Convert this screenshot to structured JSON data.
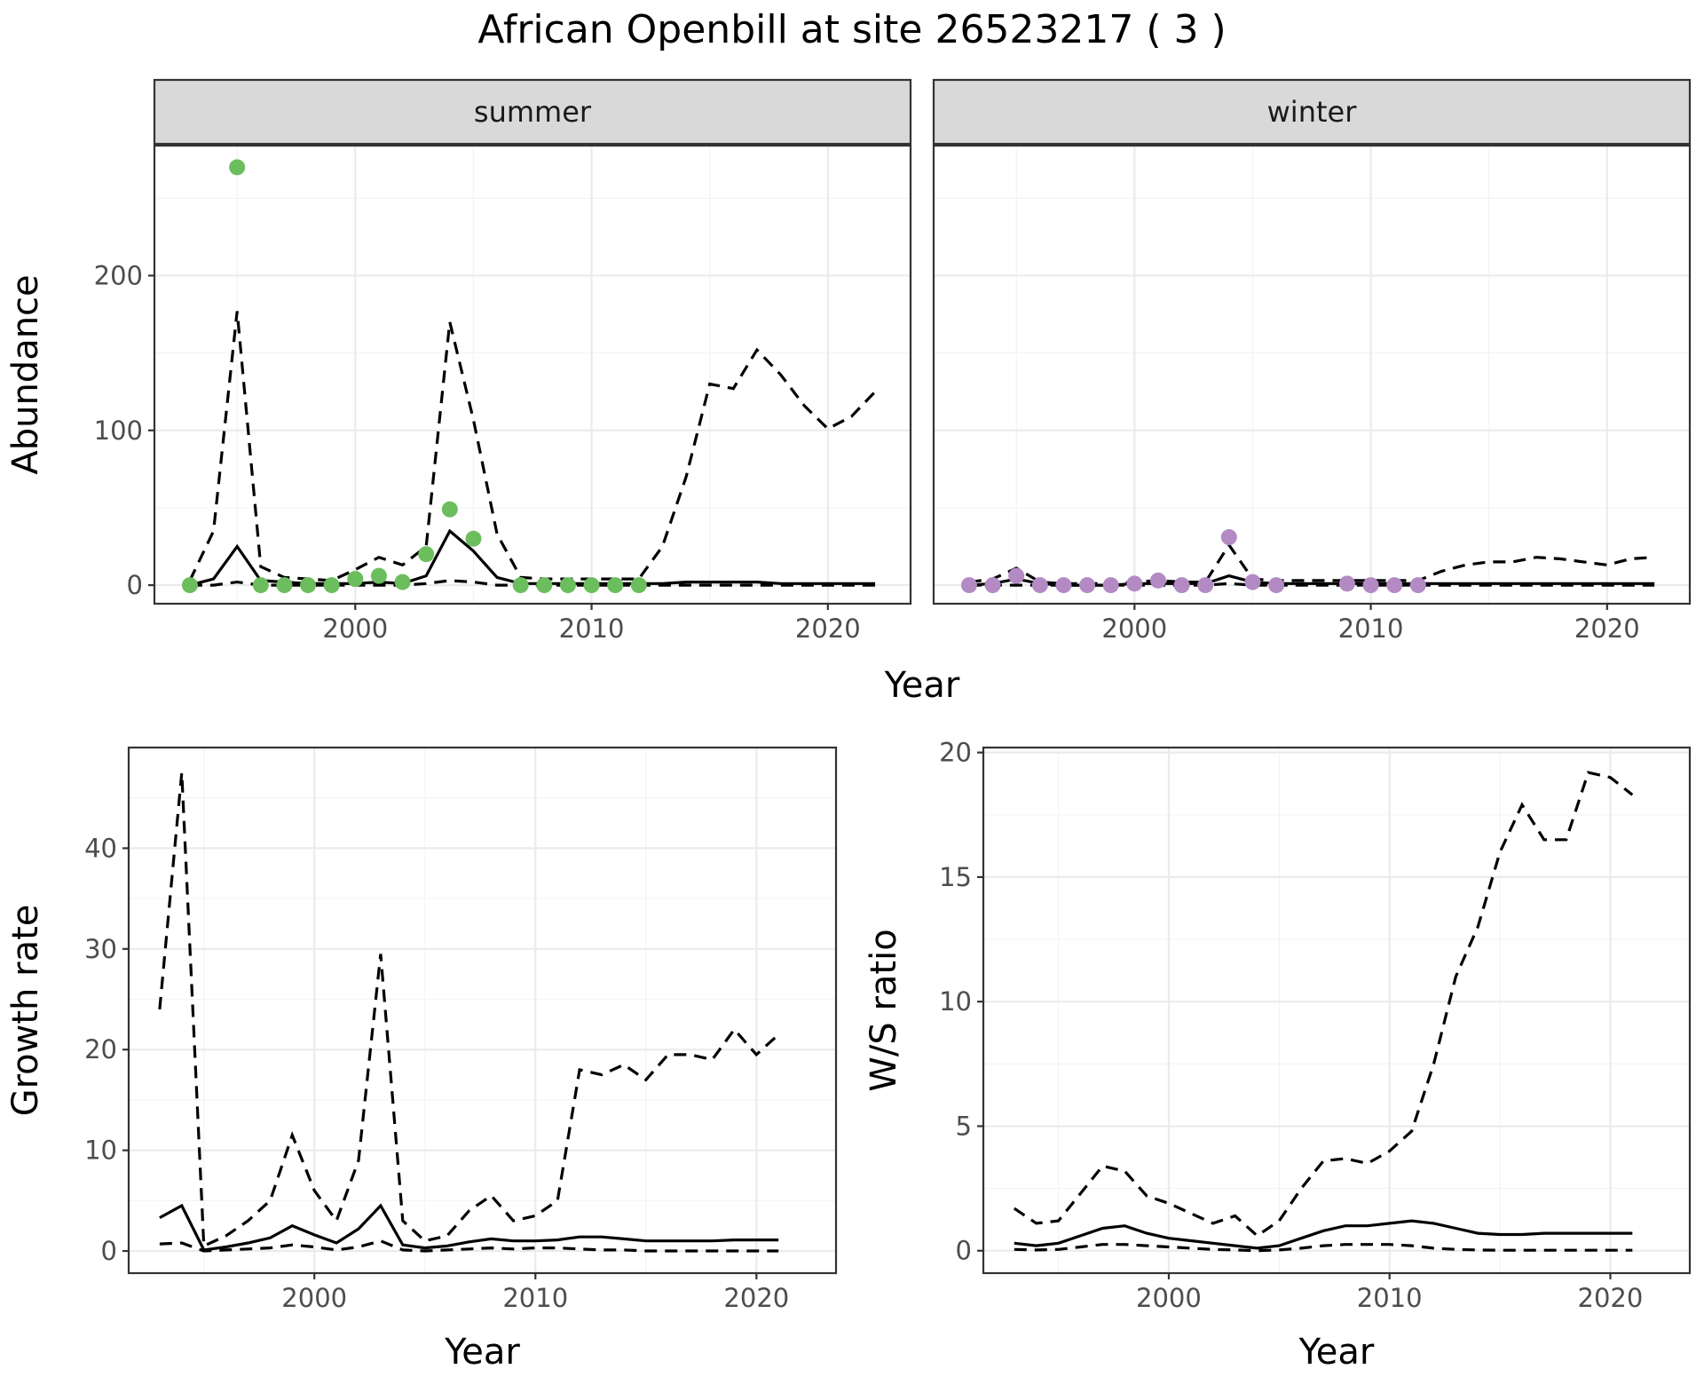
{
  "figure": {
    "title": "African Openbill at site 26523217 ( 3 )",
    "top_xlabel": "Year"
  },
  "colors": {
    "summer_points": "#6cbd5d",
    "winter_points": "#b38ac4",
    "lines": "#000000",
    "strip": "#d9d9d9"
  },
  "chart_data": [
    {
      "type": "line",
      "panel": "summer",
      "strip_label": "summer",
      "xlabel": "",
      "ylabel": "Abundance",
      "xlim": [
        1991.5,
        2023.5
      ],
      "ylim": [
        -12,
        284
      ],
      "xticks": [
        2000,
        2010,
        2020
      ],
      "yticks": [
        0,
        100,
        200
      ],
      "x": [
        1993,
        1994,
        1995,
        1996,
        1997,
        1998,
        1999,
        2000,
        2001,
        2002,
        2003,
        2004,
        2005,
        2006,
        2007,
        2008,
        2009,
        2010,
        2011,
        2012,
        2013,
        2014,
        2015,
        2016,
        2017,
        2018,
        2019,
        2020,
        2021,
        2022
      ],
      "series": [
        {
          "role": "upper",
          "style": "dashed",
          "values": [
            3,
            35,
            177,
            12,
            5,
            4,
            3,
            10,
            18,
            13,
            25,
            170,
            107,
            33,
            5,
            4,
            4,
            4,
            4,
            4,
            25,
            70,
            130,
            127,
            152,
            136,
            116,
            101,
            109,
            125
          ]
        },
        {
          "role": "estimate",
          "style": "solid",
          "values": [
            0,
            4,
            25,
            3,
            2,
            1,
            1,
            1,
            2,
            1,
            6,
            35,
            22,
            5,
            1,
            1,
            1,
            1,
            1,
            1,
            1,
            2,
            2,
            2,
            2,
            1,
            1,
            1,
            1,
            1
          ]
        },
        {
          "role": "lower",
          "style": "dashed",
          "values": [
            0,
            0,
            2,
            0,
            0,
            0,
            0,
            0,
            0,
            0,
            1,
            3,
            2,
            0,
            0,
            0,
            0,
            0,
            0,
            0,
            0,
            0,
            0,
            0,
            0,
            0,
            0,
            0,
            0,
            0
          ]
        }
      ],
      "points": {
        "x": [
          1993,
          1995,
          1996,
          1997,
          1998,
          1999,
          2000,
          2001,
          2002,
          2003,
          2004,
          2005,
          2007,
          2008,
          2009,
          2010,
          2011,
          2012
        ],
        "y": [
          0,
          270,
          0,
          0,
          0,
          0,
          4,
          6,
          2,
          20,
          49,
          30,
          0,
          0,
          0,
          0,
          0,
          0
        ]
      }
    },
    {
      "type": "line",
      "panel": "winter",
      "strip_label": "winter",
      "xlabel": "",
      "ylabel": "",
      "xlim": [
        1991.5,
        2023.5
      ],
      "ylim": [
        -12,
        284
      ],
      "xticks": [
        2000,
        2010,
        2020
      ],
      "yticks": [],
      "x": [
        1993,
        1994,
        1995,
        1996,
        1997,
        1998,
        1999,
        2000,
        2001,
        2002,
        2003,
        2004,
        2005,
        2006,
        2007,
        2008,
        2009,
        2010,
        2011,
        2012,
        2013,
        2014,
        2015,
        2016,
        2017,
        2018,
        2019,
        2020,
        2021,
        2022
      ],
      "series": [
        {
          "role": "upper",
          "style": "dashed",
          "values": [
            2,
            4,
            11,
            2,
            1,
            1,
            1,
            2,
            3,
            2,
            2,
            26,
            4,
            3,
            3,
            3,
            3,
            3,
            3,
            3,
            9,
            13,
            15,
            15,
            18,
            17,
            15,
            13,
            17,
            18
          ]
        },
        {
          "role": "estimate",
          "style": "solid",
          "values": [
            0,
            1,
            4,
            1,
            0,
            0,
            0,
            1,
            1,
            1,
            1,
            6,
            2,
            1,
            1,
            1,
            1,
            1,
            1,
            1,
            1,
            1,
            1,
            1,
            1,
            1,
            1,
            1,
            1,
            1
          ]
        },
        {
          "role": "lower",
          "style": "dashed",
          "values": [
            0,
            0,
            0,
            0,
            0,
            0,
            0,
            0,
            0,
            0,
            0,
            1,
            0,
            0,
            0,
            0,
            0,
            0,
            0,
            0,
            0,
            0,
            0,
            0,
            0,
            0,
            0,
            0,
            0,
            0
          ]
        }
      ],
      "points": {
        "x": [
          1993,
          1994,
          1995,
          1996,
          1997,
          1998,
          1999,
          2000,
          2001,
          2002,
          2003,
          2004,
          2005,
          2006,
          2009,
          2010,
          2011,
          2012
        ],
        "y": [
          0,
          0,
          6,
          0,
          0,
          0,
          0,
          1,
          3,
          0,
          0,
          31,
          2,
          0,
          1,
          0,
          0,
          0
        ]
      }
    },
    {
      "type": "line",
      "panel": "growth",
      "xlabel": "Year",
      "ylabel": "Growth rate",
      "xlim": [
        1991.6,
        2023.6
      ],
      "ylim": [
        -2.2,
        50.0
      ],
      "xticks": [
        2000,
        2010,
        2020
      ],
      "yticks": [
        0,
        10,
        20,
        30,
        40
      ],
      "x": [
        1993,
        1994,
        1995,
        1996,
        1997,
        1998,
        1999,
        2000,
        2001,
        2002,
        2003,
        2004,
        2005,
        2006,
        2007,
        2008,
        2009,
        2010,
        2011,
        2012,
        2013,
        2014,
        2015,
        2016,
        2017,
        2018,
        2019,
        2020,
        2021
      ],
      "series": [
        {
          "role": "upper",
          "style": "dashed",
          "values": [
            24,
            47.5,
            0.5,
            1.5,
            3,
            5,
            11.5,
            6,
            3,
            9,
            29.5,
            3,
            1,
            1.5,
            4,
            5.5,
            3,
            3.5,
            5,
            18,
            17.5,
            18.5,
            17,
            19.5,
            19.5,
            19,
            22,
            19.5,
            21.5
          ]
        },
        {
          "role": "estimate",
          "style": "solid",
          "values": [
            3.3,
            4.5,
            0.1,
            0.4,
            0.8,
            1.3,
            2.5,
            1.6,
            0.8,
            2.2,
            4.5,
            0.6,
            0.3,
            0.5,
            0.9,
            1.2,
            1.0,
            1.0,
            1.1,
            1.4,
            1.4,
            1.2,
            1.0,
            1.0,
            1.0,
            1.0,
            1.1,
            1.1,
            1.1
          ]
        },
        {
          "role": "lower",
          "style": "dashed",
          "values": [
            0.7,
            0.8,
            0.0,
            0.1,
            0.2,
            0.3,
            0.6,
            0.4,
            0.1,
            0.4,
            1.0,
            0.1,
            0.0,
            0.1,
            0.2,
            0.3,
            0.2,
            0.3,
            0.3,
            0.2,
            0.1,
            0.1,
            0.0,
            0.0,
            0.0,
            0.0,
            0.0,
            0.0,
            0.0
          ]
        }
      ]
    },
    {
      "type": "line",
      "panel": "ratio",
      "xlabel": "Year",
      "ylabel": "W/S ratio",
      "xlim": [
        1991.6,
        2023.6
      ],
      "ylim": [
        -0.9,
        20.2
      ],
      "xticks": [
        2000,
        2010,
        2020
      ],
      "yticks": [
        0,
        5,
        10,
        15,
        20
      ],
      "x": [
        1993,
        1994,
        1995,
        1996,
        1997,
        1998,
        1999,
        2000,
        2001,
        2002,
        2003,
        2004,
        2005,
        2006,
        2007,
        2008,
        2009,
        2010,
        2011,
        2012,
        2013,
        2014,
        2015,
        2016,
        2017,
        2018,
        2019,
        2020,
        2021
      ],
      "series": [
        {
          "role": "upper",
          "style": "dashed",
          "values": [
            1.7,
            1.1,
            1.2,
            2.3,
            3.4,
            3.2,
            2.2,
            1.9,
            1.5,
            1.1,
            1.4,
            0.6,
            1.2,
            2.5,
            3.6,
            3.7,
            3.5,
            4.0,
            4.8,
            7.5,
            11.0,
            13.0,
            16.0,
            17.9,
            16.5,
            16.5,
            19.2,
            19.0,
            18.3
          ]
        },
        {
          "role": "estimate",
          "style": "solid",
          "values": [
            0.3,
            0.2,
            0.3,
            0.6,
            0.9,
            1.0,
            0.7,
            0.5,
            0.4,
            0.3,
            0.2,
            0.1,
            0.2,
            0.5,
            0.8,
            1.0,
            1.0,
            1.1,
            1.2,
            1.1,
            0.9,
            0.7,
            0.65,
            0.65,
            0.7,
            0.7,
            0.7,
            0.7,
            0.7
          ]
        },
        {
          "role": "lower",
          "style": "dashed",
          "values": [
            0.05,
            0.03,
            0.05,
            0.15,
            0.25,
            0.25,
            0.2,
            0.15,
            0.1,
            0.05,
            0.03,
            0.0,
            0.03,
            0.1,
            0.2,
            0.25,
            0.25,
            0.25,
            0.2,
            0.1,
            0.05,
            0.03,
            0.02,
            0.02,
            0.02,
            0.02,
            0.02,
            0.02,
            0.02
          ]
        }
      ]
    }
  ]
}
